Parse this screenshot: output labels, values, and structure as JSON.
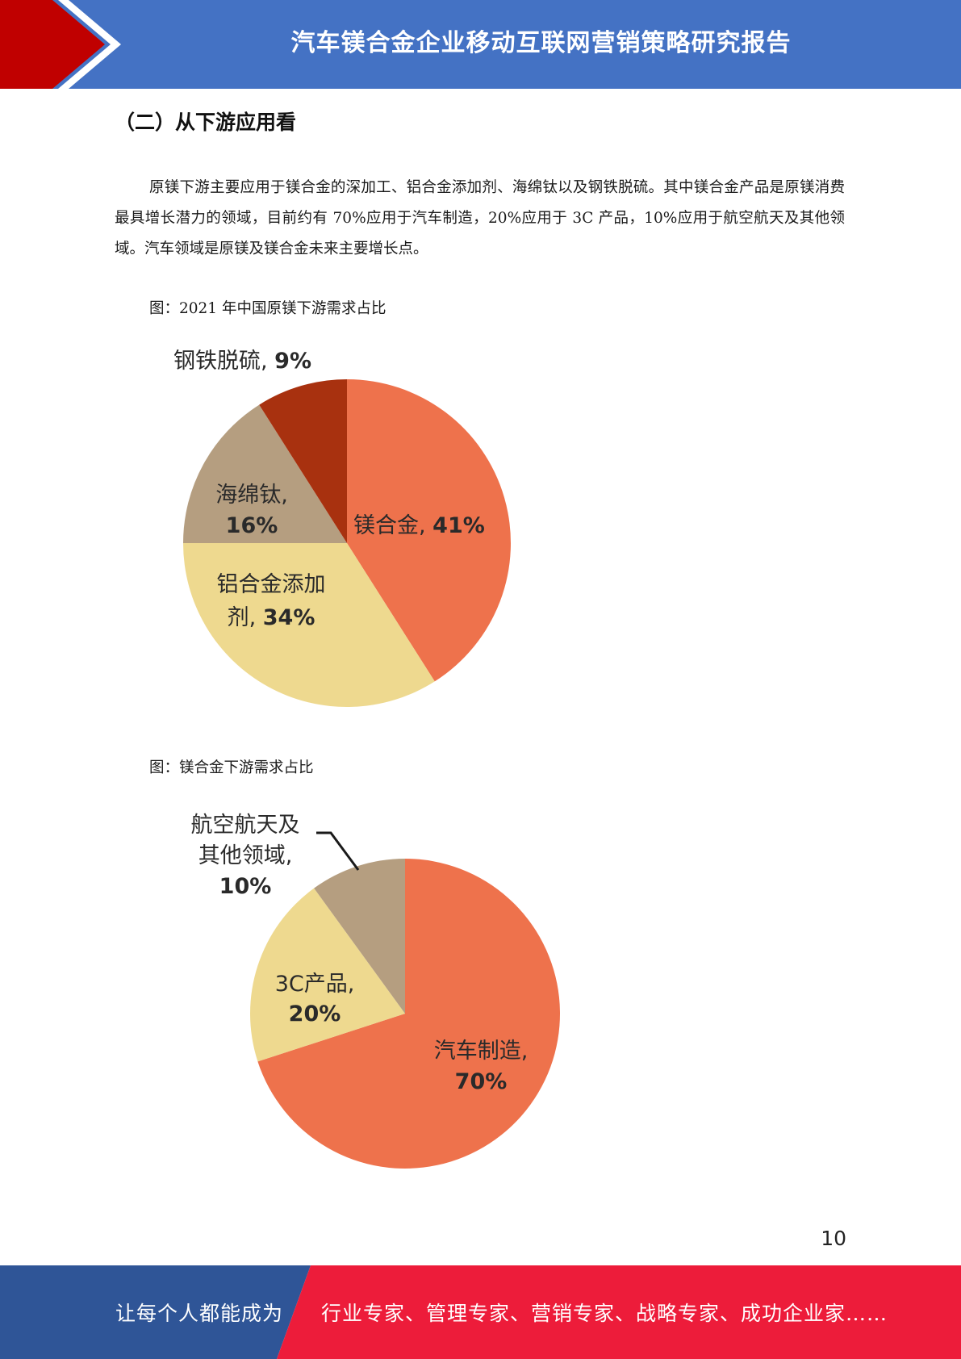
{
  "header": {
    "title": "汽车镁合金企业移动互联网营销策略研究报告",
    "accent_red": "#c00000",
    "bar_blue": "#4472c4"
  },
  "section": {
    "heading": "（二）从下游应用看"
  },
  "paragraph": "原镁下游主要应用于镁合金的深加工、铝合金添加剂、海绵钛以及钢铁脱硫。其中镁合金产品是原镁消费最具增长潜力的领域，目前约有 70%应用于汽车制造，20%应用于 3C 产品，10%应用于航空航天及其他领域。汽车领域是原镁及镁合金未来主要增长点。",
  "figures": {
    "fig1_caption": "图：2021 年中国原镁下游需求占比",
    "fig2_caption": "图：镁合金下游需求占比"
  },
  "chart_data": [
    {
      "type": "pie",
      "title": "",
      "slices": [
        {
          "label": "镁合金",
          "value": 41,
          "pct_text": "41%",
          "color": "#ee724c"
        },
        {
          "label": "铝合金添加剂",
          "value": 34,
          "pct_text": "34%",
          "color": "#eed98f"
        },
        {
          "label": "海绵钛",
          "value": 16,
          "pct_text": "16%",
          "color": "#b59e80"
        },
        {
          "label": "钢铁脱硫",
          "value": 9,
          "pct_text": "9%",
          "color": "#a8310f"
        }
      ],
      "start": "12 o'clock",
      "direction": "clockwise",
      "legend": "none"
    },
    {
      "type": "pie",
      "title": "",
      "slices": [
        {
          "label": "汽车制造",
          "value": 70,
          "pct_text": "70%",
          "color": "#ee724c"
        },
        {
          "label": "3C产品",
          "value": 20,
          "pct_text": "20%",
          "color": "#eed98f"
        },
        {
          "label": "航空航天及其他领域",
          "value": 10,
          "pct_text": "10%",
          "color": "#b59e80"
        }
      ],
      "start": "12 o'clock",
      "direction": "clockwise",
      "legend": "none"
    }
  ],
  "pie1_labels": {
    "l1": "钢铁脱硫, ",
    "l1_pct": "9%",
    "l2a": "海绵钛,",
    "l2_pct": "16%",
    "l3": "镁合金, ",
    "l3_pct": "41%",
    "l4a": "铝合金添加",
    "l4b": "剂, ",
    "l4_pct": "34%"
  },
  "pie2_labels": {
    "l1a": "航空航天及",
    "l1b": "其他领域,",
    "l1_pct": "10%",
    "l2a": "3C产品,",
    "l2_pct": "20%",
    "l3a": "汽车制造,",
    "l3_pct": "70%"
  },
  "page_number": "10",
  "footer": {
    "left_text": "让每个人都能成为",
    "right_text": "行业专家、管理专家、营销专家、战略专家、成功企业家……",
    "left_color": "#2f5597",
    "right_color": "#ed1c3a"
  }
}
